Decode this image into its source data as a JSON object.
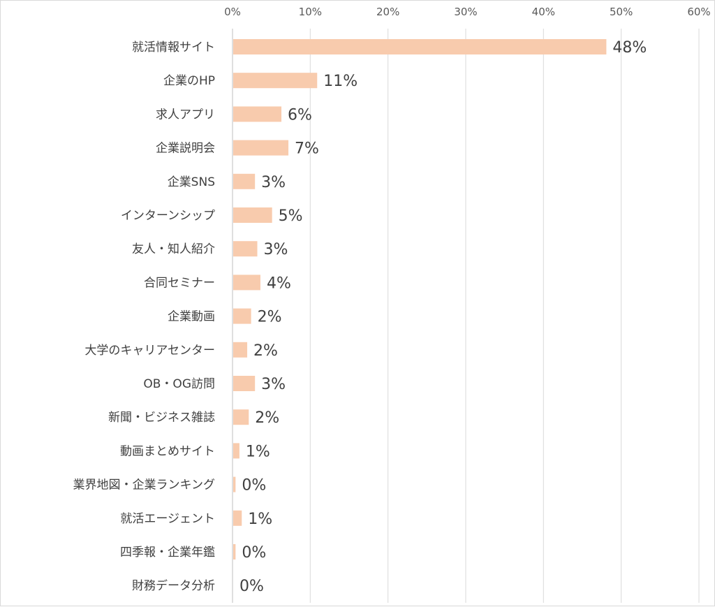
{
  "chart_data": {
    "type": "bar",
    "orientation": "horizontal",
    "categories": [
      "就活情報サイト",
      "企業のHP",
      "求人アプリ",
      "企業説明会",
      "企業SNS",
      "インターンシップ",
      "友人・知人紹介",
      "合同セミナー",
      "企業動画",
      "大学のキャリアセンター",
      "OB・OG訪問",
      "新聞・ビジネス雑誌",
      "動画まとめサイト",
      "業界地図・企業ランキング",
      "就活エージェント",
      "四季報・企業年鑑",
      "財務データ分析"
    ],
    "values": [
      48,
      11,
      6,
      7,
      3,
      5,
      3,
      4,
      2,
      2,
      3,
      2,
      1,
      0,
      1,
      0,
      0
    ],
    "bar_values": [
      48,
      10.8,
      6.2,
      7.1,
      2.8,
      5.0,
      3.1,
      3.5,
      2.3,
      1.8,
      2.8,
      2.0,
      0.8,
      0.3,
      1.1,
      0.3,
      0
    ],
    "data_labels": [
      "48%",
      "11%",
      "6%",
      "7%",
      "3%",
      "5%",
      "3%",
      "4%",
      "2%",
      "2%",
      "3%",
      "2%",
      "1%",
      "0%",
      "1%",
      "0%",
      "0%"
    ],
    "xticks": [
      "0%",
      "10%",
      "20%",
      "30%",
      "40%",
      "50%",
      "60%"
    ],
    "xlim": [
      0,
      60
    ],
    "xaxis_position": "top",
    "grid": true,
    "bar_color": "#f8cbad",
    "grid_color": "#d9d9d9",
    "text_color": "#404040"
  }
}
